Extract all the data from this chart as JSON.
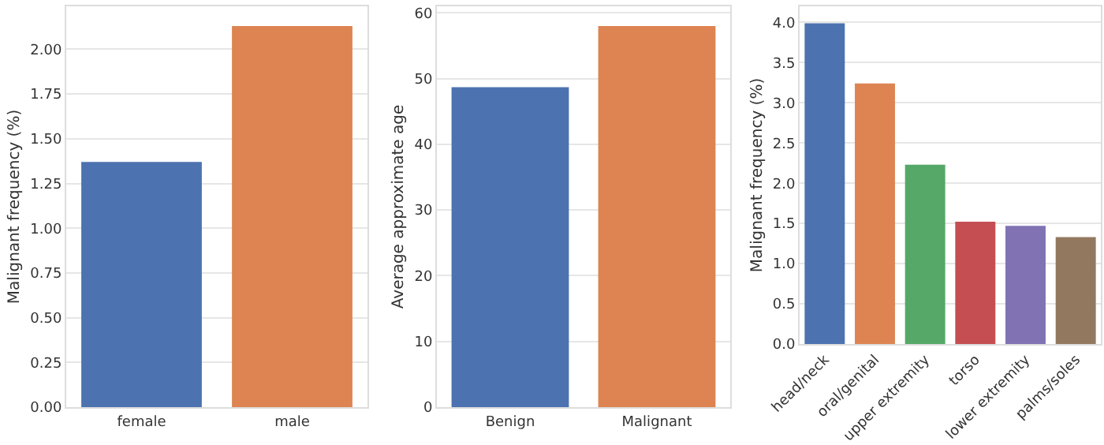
{
  "chart_data": [
    {
      "type": "bar",
      "ylabel": "Malignant frequency (%)",
      "categories": [
        "female",
        "male"
      ],
      "colors": [
        "#4c72b0",
        "#dd8452"
      ],
      "values": [
        1.37,
        2.13
      ],
      "ylim": [
        0,
        2.24
      ],
      "yticks": [
        {
          "value": 0,
          "label": "0.00"
        },
        {
          "value": 0.25,
          "label": "0.25"
        },
        {
          "value": 0.5,
          "label": "0.50"
        },
        {
          "value": 0.75,
          "label": "0.75"
        },
        {
          "value": 1,
          "label": "1.00"
        },
        {
          "value": 1.25,
          "label": "1.25"
        },
        {
          "value": 1.5,
          "label": "1.50"
        },
        {
          "value": 1.75,
          "label": "1.75"
        },
        {
          "value": 2,
          "label": "2.00"
        }
      ],
      "grid": "y"
    },
    {
      "type": "bar",
      "ylabel": "Average approximate age",
      "categories": [
        "Benign",
        "Malignant"
      ],
      "colors": [
        "#4c72b0",
        "#dd8452"
      ],
      "values": [
        48.7,
        58.0
      ],
      "ylim": [
        0,
        61
      ],
      "yticks": [
        0,
        10,
        20,
        30,
        40,
        50,
        60
      ],
      "grid": "y"
    },
    {
      "type": "bar",
      "ylabel": "Malignant frequency (%)",
      "categories": [
        "head/neck",
        "oral/genital",
        "upper extremity",
        "torso",
        "lower extremity",
        "palms/soles"
      ],
      "colors": [
        "#4c72b0",
        "#dd8452",
        "#55a868",
        "#c44e52",
        "#8172b3",
        "#937860"
      ],
      "values": [
        3.99,
        3.24,
        2.23,
        1.52,
        1.47,
        1.33
      ],
      "ylim": [
        0,
        4.2
      ],
      "yticks": [
        {
          "value": 0,
          "label": "0.0"
        },
        {
          "value": 0.5,
          "label": "0.5"
        },
        {
          "value": 1,
          "label": "1.0"
        },
        {
          "value": 1.5,
          "label": "1.5"
        },
        {
          "value": 2,
          "label": "2.0"
        },
        {
          "value": 2.5,
          "label": "2.5"
        },
        {
          "value": 3,
          "label": "3.0"
        },
        {
          "value": 3.5,
          "label": "3.5"
        },
        {
          "value": 4,
          "label": "4.0"
        }
      ],
      "grid": "y"
    }
  ]
}
